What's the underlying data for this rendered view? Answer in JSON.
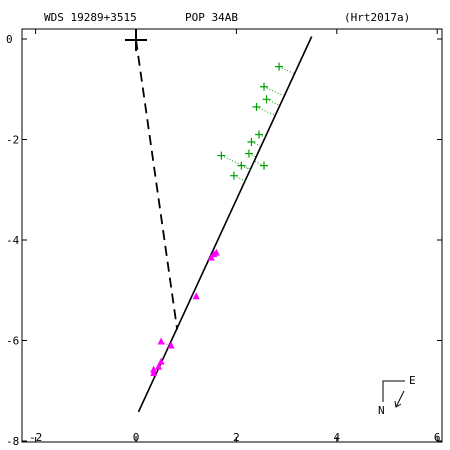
{
  "header": {
    "left": "WDS 19289+3515",
    "center": "POP  34AB",
    "right": "(Hrt2017a)"
  },
  "compass": {
    "north": "N",
    "east": "E"
  },
  "chart_data": {
    "type": "scatter",
    "title": "",
    "xlabel": "",
    "ylabel": "",
    "xlim": [
      -2.5,
      6.3
    ],
    "ylim": [
      -8,
      0.2
    ],
    "x_ticks": [
      -2,
      0,
      2,
      4,
      6
    ],
    "y_ticks": [
      0,
      -2,
      -4,
      -6,
      -8
    ],
    "x_tick_labels": [
      "-2",
      "0",
      "2",
      "4",
      "6"
    ],
    "y_tick_labels": [
      "0",
      "-2",
      "-4",
      "-6",
      "-8"
    ],
    "grid": false,
    "colors": {
      "orbit_line": "#000000",
      "node_line": "#000000",
      "green_obs": "#00a000",
      "magenta_obs": "#ff00ff"
    },
    "primary_star": {
      "x": 0.0,
      "y": -0.02
    },
    "orbit_line": [
      {
        "x": 0.05,
        "y": -7.42
      },
      {
        "x": 3.5,
        "y": 0.05
      }
    ],
    "line_of_nodes": [
      {
        "x": 0.0,
        "y": -0.02
      },
      {
        "x": 0.82,
        "y": -5.78
      }
    ],
    "series": [
      {
        "marker": "plus",
        "color": "#00a000",
        "points": [
          {
            "x": 2.85,
            "y": -0.55
          },
          {
            "x": 2.55,
            "y": -0.95
          },
          {
            "x": 2.6,
            "y": -1.2
          },
          {
            "x": 2.4,
            "y": -1.35
          },
          {
            "x": 2.45,
            "y": -1.9
          },
          {
            "x": 2.3,
            "y": -2.05
          },
          {
            "x": 2.25,
            "y": -2.28
          },
          {
            "x": 1.7,
            "y": -2.32
          },
          {
            "x": 2.1,
            "y": -2.52
          },
          {
            "x": 2.55,
            "y": -2.52
          },
          {
            "x": 1.95,
            "y": -2.72
          }
        ]
      },
      {
        "marker": "triangle",
        "color": "#ff00ff",
        "points": [
          {
            "x": 1.6,
            "y": -4.25
          },
          {
            "x": 1.55,
            "y": -4.28
          },
          {
            "x": 1.5,
            "y": -4.35
          },
          {
            "x": 1.2,
            "y": -5.12
          },
          {
            "x": 0.7,
            "y": -6.1
          },
          {
            "x": 0.5,
            "y": -6.02
          },
          {
            "x": 0.5,
            "y": -6.42
          },
          {
            "x": 0.45,
            "y": -6.52
          },
          {
            "x": 0.35,
            "y": -6.58
          },
          {
            "x": 0.35,
            "y": -6.65
          }
        ]
      }
    ]
  }
}
